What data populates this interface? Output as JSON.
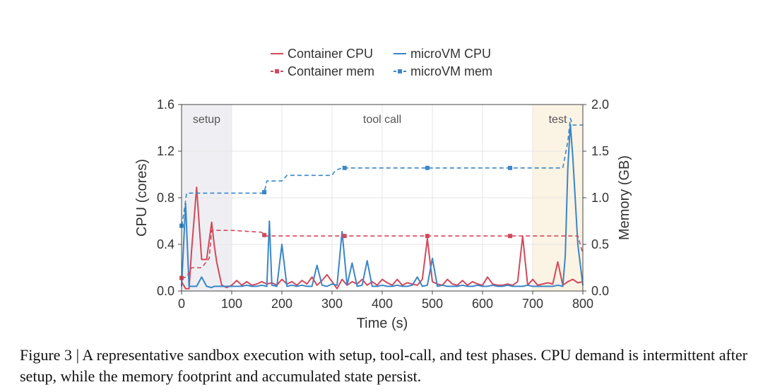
{
  "caption": "Figure 3 | A representative sandbox execution with setup, tool-call, and test phases. CPU demand is intermittent after setup, while the memory footprint and accumulated state persist.",
  "chart_data": {
    "type": "line",
    "title": "",
    "xlabel": "Time (s)",
    "ylabel": "CPU (cores)",
    "y2label": "Memory (GB)",
    "xlim": [
      0,
      800
    ],
    "ylim": [
      0,
      1.6
    ],
    "y2lim": [
      0,
      2.0
    ],
    "xticks": [
      0,
      100,
      200,
      300,
      400,
      500,
      600,
      700,
      800
    ],
    "yticks": [
      0.0,
      0.4,
      0.8,
      1.2,
      1.6
    ],
    "y2ticks": [
      0.0,
      0.5,
      1.0,
      1.5,
      2.0
    ],
    "xtick_labels": [
      "0",
      "100",
      "200",
      "300",
      "400",
      "500",
      "600",
      "700",
      "800"
    ],
    "ytick_labels": [
      "0.0",
      "0.4",
      "0.8",
      "1.2",
      "1.6"
    ],
    "y2tick_labels": [
      "0.0",
      "0.5",
      "1.0",
      "1.5",
      "2.0"
    ],
    "grid": true,
    "legend_position": "top-center",
    "phases": [
      {
        "label": "setup",
        "start": 0,
        "end": 100,
        "color": "#efeff3"
      },
      {
        "label": "tool call",
        "start": 100,
        "end": 700,
        "color": "#ffffff"
      },
      {
        "label": "test",
        "start": 700,
        "end": 800,
        "color": "#fbf3e3"
      }
    ],
    "series": [
      {
        "name": "Container CPU",
        "axis": "left",
        "style": "solid",
        "color": "#d1495b",
        "x": [
          0,
          8,
          15,
          20,
          30,
          40,
          50,
          60,
          65,
          70,
          80,
          90,
          100,
          110,
          120,
          130,
          140,
          150,
          160,
          170,
          180,
          190,
          200,
          210,
          220,
          230,
          240,
          250,
          260,
          270,
          280,
          290,
          300,
          310,
          320,
          330,
          340,
          350,
          360,
          370,
          380,
          390,
          400,
          410,
          420,
          430,
          440,
          450,
          460,
          470,
          480,
          490,
          500,
          510,
          520,
          530,
          540,
          550,
          560,
          570,
          580,
          590,
          600,
          610,
          620,
          630,
          640,
          650,
          660,
          670,
          680,
          690,
          700,
          710,
          720,
          730,
          740,
          750,
          760,
          770,
          780,
          790,
          800
        ],
        "y": [
          0.08,
          0.02,
          0.02,
          0.35,
          0.89,
          0.27,
          0.27,
          0.59,
          0.4,
          0.25,
          0.05,
          0.03,
          0.05,
          0.09,
          0.05,
          0.08,
          0.05,
          0.06,
          0.08,
          0.06,
          0.07,
          0.05,
          0.1,
          0.06,
          0.08,
          0.05,
          0.09,
          0.06,
          0.12,
          0.05,
          0.09,
          0.14,
          0.08,
          0.02,
          0.1,
          0.05,
          0.08,
          0.06,
          0.1,
          0.05,
          0.08,
          0.05,
          0.1,
          0.07,
          0.05,
          0.1,
          0.05,
          0.07,
          0.06,
          0.05,
          0.1,
          0.45,
          0.08,
          0.06,
          0.05,
          0.1,
          0.06,
          0.05,
          0.09,
          0.05,
          0.08,
          0.06,
          0.05,
          0.12,
          0.06,
          0.05,
          0.05,
          0.06,
          0.05,
          0.08,
          0.47,
          0.05,
          0.1,
          0.05,
          0.06,
          0.07,
          0.06,
          0.25,
          0.05,
          0.08,
          0.1,
          0.07,
          0.08
        ]
      },
      {
        "name": "microVM CPU",
        "axis": "left",
        "style": "solid",
        "color": "#3a86c8",
        "x": [
          0,
          8,
          15,
          20,
          30,
          40,
          50,
          60,
          65,
          70,
          80,
          90,
          100,
          110,
          120,
          130,
          140,
          150,
          160,
          170,
          175,
          180,
          190,
          200,
          210,
          220,
          230,
          240,
          250,
          260,
          270,
          280,
          290,
          300,
          310,
          320,
          330,
          340,
          350,
          360,
          370,
          380,
          390,
          400,
          410,
          420,
          430,
          440,
          450,
          460,
          470,
          480,
          490,
          500,
          510,
          520,
          530,
          540,
          550,
          560,
          570,
          580,
          590,
          600,
          610,
          620,
          630,
          640,
          650,
          660,
          670,
          680,
          690,
          700,
          710,
          720,
          730,
          740,
          750,
          760,
          765,
          770,
          775,
          780,
          790,
          800
        ],
        "y": [
          0.04,
          0.75,
          0.04,
          0.04,
          0.04,
          0.12,
          0.04,
          0.03,
          0.04,
          0.04,
          0.04,
          0.04,
          0.04,
          0.04,
          0.04,
          0.05,
          0.04,
          0.04,
          0.05,
          0.04,
          0.6,
          0.05,
          0.04,
          0.4,
          0.04,
          0.05,
          0.04,
          0.05,
          0.04,
          0.04,
          0.22,
          0.05,
          0.04,
          0.06,
          0.05,
          0.51,
          0.05,
          0.24,
          0.04,
          0.05,
          0.26,
          0.04,
          0.04,
          0.05,
          0.04,
          0.04,
          0.05,
          0.04,
          0.04,
          0.05,
          0.12,
          0.04,
          0.05,
          0.28,
          0.04,
          0.05,
          0.04,
          0.04,
          0.04,
          0.05,
          0.04,
          0.04,
          0.05,
          0.04,
          0.04,
          0.05,
          0.04,
          0.04,
          0.05,
          0.04,
          0.04,
          0.04,
          0.05,
          0.04,
          0.04,
          0.04,
          0.04,
          0.04,
          0.05,
          0.04,
          0.3,
          1.05,
          1.43,
          1.15,
          0.4,
          0.05
        ]
      },
      {
        "name": "Container mem",
        "axis": "right",
        "style": "dashed",
        "color": "#d1495b",
        "marker": "square",
        "x": [
          0,
          10,
          20,
          40,
          55,
          60,
          70,
          100,
          160,
          165,
          170,
          200,
          300,
          325,
          400,
          490,
          500,
          650,
          660,
          760,
          790,
          800
        ],
        "y": [
          0.14,
          0.15,
          0.25,
          0.25,
          0.35,
          0.65,
          0.65,
          0.65,
          0.63,
          0.6,
          0.59,
          0.59,
          0.59,
          0.59,
          0.59,
          0.59,
          0.59,
          0.59,
          0.59,
          0.59,
          0.59,
          0.4
        ],
        "marker_x": [
          0,
          165,
          325,
          490,
          655
        ],
        "marker_y": [
          0.14,
          0.6,
          0.59,
          0.59,
          0.59
        ]
      },
      {
        "name": "microVM mem",
        "axis": "right",
        "style": "dashed",
        "color": "#3a86c8",
        "marker": "square",
        "x": [
          0,
          5,
          10,
          100,
          160,
          165,
          170,
          200,
          210,
          300,
          305,
          310,
          320,
          325,
          490,
          650,
          760,
          770,
          775,
          780,
          800
        ],
        "y": [
          0.7,
          0.85,
          1.05,
          1.05,
          1.05,
          1.06,
          1.18,
          1.18,
          1.24,
          1.24,
          1.28,
          1.3,
          1.32,
          1.32,
          1.32,
          1.32,
          1.32,
          1.6,
          1.85,
          1.78,
          1.78
        ],
        "marker_x": [
          0,
          165,
          325,
          490,
          655
        ],
        "marker_y": [
          0.7,
          1.06,
          1.32,
          1.32,
          1.32
        ]
      }
    ]
  }
}
